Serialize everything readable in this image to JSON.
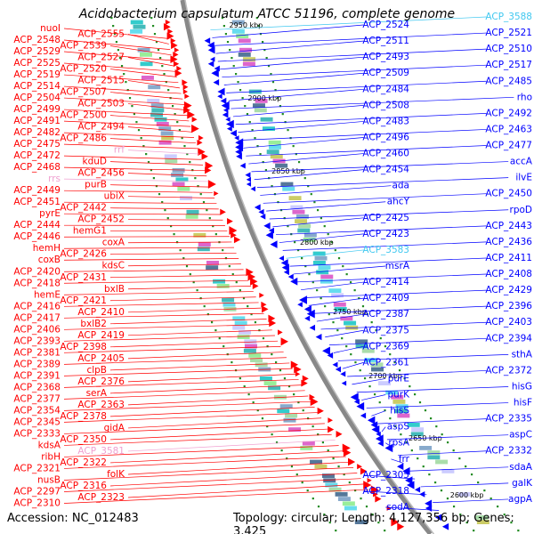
{
  "title": "Acidobacterium capsulatum ATCC 51196, complete genome",
  "footer": {
    "accession": "Accession: NC_012483",
    "topology": "Topology: circular; Length: 4,127,356 bp; Genes: 3,425"
  },
  "colors": {
    "forward": "#ff0000",
    "reverse": "#0000ff",
    "rna_forward": "#f0a0d0",
    "rna_reverse": "#40c8f0",
    "backbone": "#888888",
    "tick": "#228b22"
  },
  "kbp_labels": [
    "2950 kbp",
    "2900 kbp",
    "2850 kbp",
    "2800 kbp",
    "2750 kbp",
    "2700 kbp",
    "2650 kbp",
    "2600 kbp"
  ],
  "left_labels": [
    {
      "text": "nuoI",
      "type": "gene"
    },
    {
      "text": "ACP_2555",
      "type": "gene"
    },
    {
      "text": "ACP_2548",
      "type": "gene"
    },
    {
      "text": "ACP_2539",
      "type": "gene"
    },
    {
      "text": "ACP_2529",
      "type": "gene"
    },
    {
      "text": "ACP_2527",
      "type": "gene"
    },
    {
      "text": "ACP_2525",
      "type": "gene"
    },
    {
      "text": "ACP_2520",
      "type": "gene"
    },
    {
      "text": "ACP_2519",
      "type": "gene"
    },
    {
      "text": "ACP_2515",
      "type": "gene"
    },
    {
      "text": "ACP_2514",
      "type": "gene"
    },
    {
      "text": "ACP_2507",
      "type": "gene"
    },
    {
      "text": "ACP_2504",
      "type": "gene"
    },
    {
      "text": "ACP_2503",
      "type": "gene"
    },
    {
      "text": "ACP_2499",
      "type": "gene"
    },
    {
      "text": "ACP_2500",
      "type": "gene"
    },
    {
      "text": "ACP_2491",
      "type": "gene"
    },
    {
      "text": "ACP_2494",
      "type": "gene"
    },
    {
      "text": "ACP_2482",
      "type": "gene"
    },
    {
      "text": "ACP_2486",
      "type": "gene"
    },
    {
      "text": "ACP_2475",
      "type": "gene"
    },
    {
      "text": "rrf",
      "type": "rna"
    },
    {
      "text": "ACP_2472",
      "type": "gene"
    },
    {
      "text": "kduD",
      "type": "gene"
    },
    {
      "text": "ACP_2468",
      "type": "gene"
    },
    {
      "text": "ACP_2456",
      "type": "gene"
    },
    {
      "text": "rrs",
      "type": "rna"
    },
    {
      "text": "purB",
      "type": "gene"
    },
    {
      "text": "ACP_2449",
      "type": "gene"
    },
    {
      "text": "ubiX",
      "type": "gene"
    },
    {
      "text": "ACP_2451",
      "type": "gene"
    },
    {
      "text": "ACP_2442",
      "type": "gene"
    },
    {
      "text": "pyrE",
      "type": "gene"
    },
    {
      "text": "ACP_2452",
      "type": "gene"
    },
    {
      "text": "ACP_2444",
      "type": "gene"
    },
    {
      "text": "hemG1",
      "type": "gene"
    },
    {
      "text": "ACP_2446",
      "type": "gene"
    },
    {
      "text": "coxA",
      "type": "gene"
    },
    {
      "text": "hemH",
      "type": "gene"
    },
    {
      "text": "ACP_2426",
      "type": "gene"
    },
    {
      "text": "coxB",
      "type": "gene"
    },
    {
      "text": "kdsC",
      "type": "gene"
    },
    {
      "text": "ACP_2420",
      "type": "gene"
    },
    {
      "text": "ACP_2431",
      "type": "gene"
    },
    {
      "text": "ACP_2418",
      "type": "gene"
    },
    {
      "text": "bxlB",
      "type": "gene"
    },
    {
      "text": "hemE",
      "type": "gene"
    },
    {
      "text": "ACP_2421",
      "type": "gene"
    },
    {
      "text": "ACP_2416",
      "type": "gene"
    },
    {
      "text": "ACP_2410",
      "type": "gene"
    },
    {
      "text": "ACP_2417",
      "type": "gene"
    },
    {
      "text": "bxlB2",
      "type": "gene"
    },
    {
      "text": "ACP_2406",
      "type": "gene"
    },
    {
      "text": "ACP_2419",
      "type": "gene"
    },
    {
      "text": "ACP_2393",
      "type": "gene"
    },
    {
      "text": "ACP_2398",
      "type": "gene"
    },
    {
      "text": "ACP_2381",
      "type": "gene"
    },
    {
      "text": "ACP_2405",
      "type": "gene"
    },
    {
      "text": "ACP_2389",
      "type": "gene"
    },
    {
      "text": "clpB",
      "type": "gene"
    },
    {
      "text": "ACP_2391",
      "type": "gene"
    },
    {
      "text": "ACP_2376",
      "type": "gene"
    },
    {
      "text": "ACP_2368",
      "type": "gene"
    },
    {
      "text": "serA",
      "type": "gene"
    },
    {
      "text": "ACP_2377",
      "type": "gene"
    },
    {
      "text": "ACP_2363",
      "type": "gene"
    },
    {
      "text": "ACP_2354",
      "type": "gene"
    },
    {
      "text": "ACP_2378",
      "type": "gene"
    },
    {
      "text": "ACP_2345",
      "type": "gene"
    },
    {
      "text": "gidA",
      "type": "gene"
    },
    {
      "text": "ACP_2333",
      "type": "gene"
    },
    {
      "text": "ACP_2350",
      "type": "gene"
    },
    {
      "text": "kdsA",
      "type": "gene"
    },
    {
      "text": "ACP_3581",
      "type": "rna"
    },
    {
      "text": "ribH",
      "type": "gene"
    },
    {
      "text": "ACP_2322",
      "type": "gene"
    },
    {
      "text": "ACP_2321",
      "type": "gene"
    },
    {
      "text": "folK",
      "type": "gene"
    },
    {
      "text": "nusB",
      "type": "gene"
    },
    {
      "text": "ACP_2316",
      "type": "gene"
    },
    {
      "text": "ACP_2297",
      "type": "gene"
    },
    {
      "text": "ACP_2323",
      "type": "gene"
    },
    {
      "text": "ACP_2310",
      "type": "gene"
    }
  ],
  "right_labels": [
    {
      "text": "ACP_3588",
      "type": "rna"
    },
    {
      "text": "ACP_2524",
      "type": "gene"
    },
    {
      "text": "ACP_2521",
      "type": "gene"
    },
    {
      "text": "ACP_2511",
      "type": "gene"
    },
    {
      "text": "ACP_2510",
      "type": "gene"
    },
    {
      "text": "ACP_2493",
      "type": "gene"
    },
    {
      "text": "ACP_2517",
      "type": "gene"
    },
    {
      "text": "ACP_2509",
      "type": "gene"
    },
    {
      "text": "ACP_2485",
      "type": "gene"
    },
    {
      "text": "ACP_2484",
      "type": "gene"
    },
    {
      "text": "rho",
      "type": "gene"
    },
    {
      "text": "ACP_2508",
      "type": "gene"
    },
    {
      "text": "ACP_2492",
      "type": "gene"
    },
    {
      "text": "ACP_2483",
      "type": "gene"
    },
    {
      "text": "ACP_2463",
      "type": "gene"
    },
    {
      "text": "ACP_2496",
      "type": "gene"
    },
    {
      "text": "ACP_2477",
      "type": "gene"
    },
    {
      "text": "ACP_2460",
      "type": "gene"
    },
    {
      "text": "accA",
      "type": "gene"
    },
    {
      "text": "ACP_2454",
      "type": "gene"
    },
    {
      "text": "ilvE",
      "type": "gene"
    },
    {
      "text": "ada",
      "type": "gene"
    },
    {
      "text": "ACP_2450",
      "type": "gene"
    },
    {
      "text": "ahcY",
      "type": "gene"
    },
    {
      "text": "rpoD",
      "type": "gene"
    },
    {
      "text": "ACP_2425",
      "type": "gene"
    },
    {
      "text": "ACP_2443",
      "type": "gene"
    },
    {
      "text": "ACP_2423",
      "type": "gene"
    },
    {
      "text": "ACP_2436",
      "type": "gene"
    },
    {
      "text": "ACP_3583",
      "type": "rna"
    },
    {
      "text": "ACP_2411",
      "type": "gene"
    },
    {
      "text": "msrA",
      "type": "gene"
    },
    {
      "text": "ACP_2408",
      "type": "gene"
    },
    {
      "text": "ACP_2414",
      "type": "gene"
    },
    {
      "text": "ACP_2429",
      "type": "gene"
    },
    {
      "text": "ACP_2409",
      "type": "gene"
    },
    {
      "text": "ACP_2396",
      "type": "gene"
    },
    {
      "text": "ACP_2387",
      "type": "gene"
    },
    {
      "text": "ACP_2403",
      "type": "gene"
    },
    {
      "text": "ACP_2375",
      "type": "gene"
    },
    {
      "text": "ACP_2394",
      "type": "gene"
    },
    {
      "text": "ACP_2369",
      "type": "gene"
    },
    {
      "text": "sthA",
      "type": "gene"
    },
    {
      "text": "ACP_2361",
      "type": "gene"
    },
    {
      "text": "ACP_2372",
      "type": "gene"
    },
    {
      "text": "purE",
      "type": "gene"
    },
    {
      "text": "hisG",
      "type": "gene"
    },
    {
      "text": "purK",
      "type": "gene"
    },
    {
      "text": "hisF",
      "type": "gene"
    },
    {
      "text": "hisS",
      "type": "gene"
    },
    {
      "text": "ACP_2335",
      "type": "gene"
    },
    {
      "text": "aspS",
      "type": "gene"
    },
    {
      "text": "aspC",
      "type": "gene"
    },
    {
      "text": "rpsA",
      "type": "gene"
    },
    {
      "text": "ACP_2332",
      "type": "gene"
    },
    {
      "text": "frr",
      "type": "gene"
    },
    {
      "text": "sdaA",
      "type": "gene"
    },
    {
      "text": "ACP_2305",
      "type": "gene"
    },
    {
      "text": "galK",
      "type": "gene"
    },
    {
      "text": "ACP_2318",
      "type": "gene"
    },
    {
      "text": "agpA",
      "type": "gene"
    },
    {
      "text": "sodA",
      "type": "gene"
    }
  ]
}
